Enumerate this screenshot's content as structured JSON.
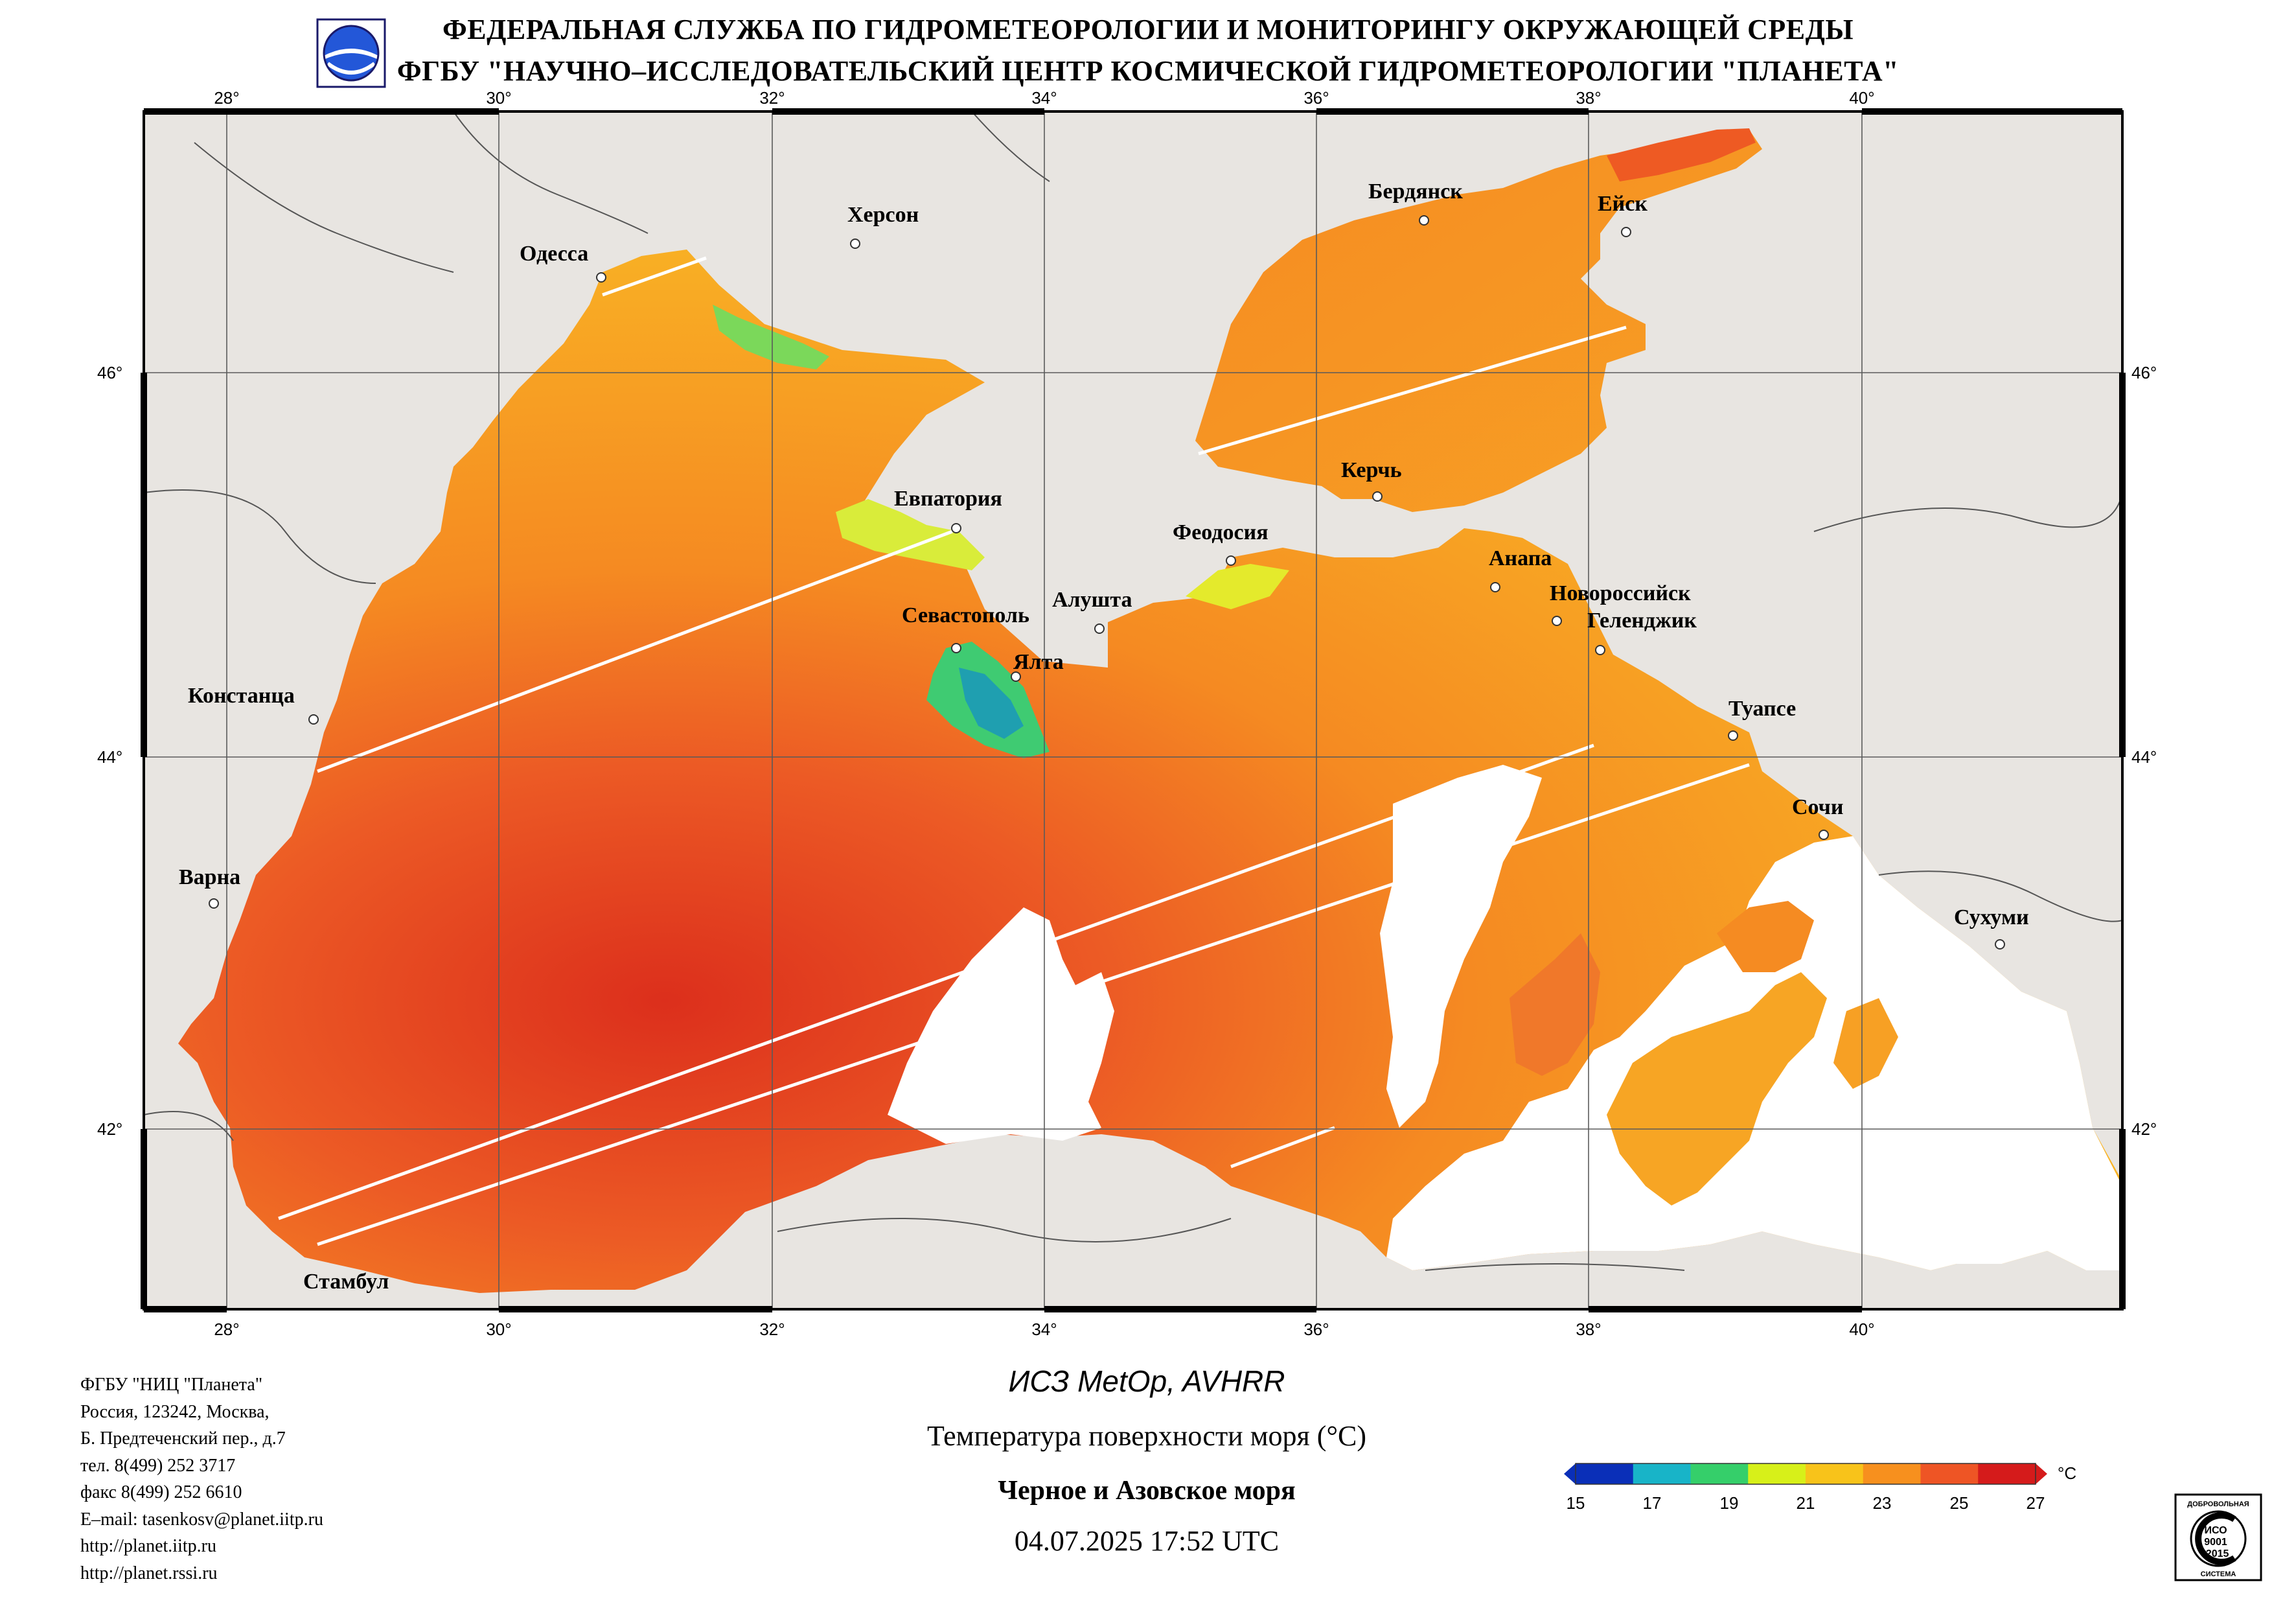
{
  "header": {
    "line1": "ФЕДЕРАЛЬНАЯ СЛУЖБА ПО ГИДРОМЕТЕОРОЛОГИИ И МОНИТОРИНГУ ОКРУЖАЮЩЕЙ СРЕДЫ",
    "line2": "ФГБУ \"НАУЧНО–ИССЛЕДОВАТЕЛЬСКИЙ ЦЕНТР КОСМИЧЕСКОЙ ГИДРОМЕТЕОРОЛОГИИ \"ПЛАНЕТА\""
  },
  "axes": {
    "lon_labels": [
      "28°",
      "30°",
      "32°",
      "34°",
      "36°",
      "38°",
      "40°"
    ],
    "lat_labels": [
      "46°",
      "44°",
      "42°"
    ]
  },
  "cities": [
    {
      "name": "Одесса"
    },
    {
      "name": "Херсон"
    },
    {
      "name": "Бердянск"
    },
    {
      "name": "Ейск"
    },
    {
      "name": "Евпатория"
    },
    {
      "name": "Керчь"
    },
    {
      "name": "Феодосия"
    },
    {
      "name": "Анапа"
    },
    {
      "name": "Новороссийск"
    },
    {
      "name": "Геленджик"
    },
    {
      "name": "Алушта"
    },
    {
      "name": "Севастополь"
    },
    {
      "name": "Ялта"
    },
    {
      "name": "Констанца"
    },
    {
      "name": "Туапсе"
    },
    {
      "name": "Сочи"
    },
    {
      "name": "Варна"
    },
    {
      "name": "Сухуми"
    },
    {
      "name": "Стамбул"
    }
  ],
  "footer_info": [
    "ФГБУ \"НИЦ \"Планета\"",
    "Россия, 123242, Москва,",
    "Б. Предтеченский пер., д.7",
    "тел. 8(499) 252 3717",
    "факс 8(499) 252 6610",
    "E–mail: tasenkosv@planet.iitp.ru",
    "http://planet.iitp.ru",
    "http://planet.rssi.ru"
  ],
  "caption": {
    "satellite": "ИСЗ MetOp, AVHRR",
    "parameter": "Температура поверхности моря (°С)",
    "region": "Черное и Азовское моря",
    "datetime": "04.07.2025 17:52 UTC"
  },
  "colorbar": {
    "ticks": [
      "15",
      "17",
      "19",
      "21",
      "23",
      "25",
      "27"
    ],
    "unit": "°C",
    "colors": [
      "#0a2fb8",
      "#18b4c8",
      "#35cf6a",
      "#d7f019",
      "#f8c31a",
      "#f7901e",
      "#ee5525",
      "#d51b1b"
    ]
  },
  "cert": {
    "top": "ДОБРОВОЛЬНАЯ",
    "mid1": "ИСО",
    "mid2": "9001",
    "mid3": "-2015",
    "bottom": "СИСТЕМА"
  }
}
